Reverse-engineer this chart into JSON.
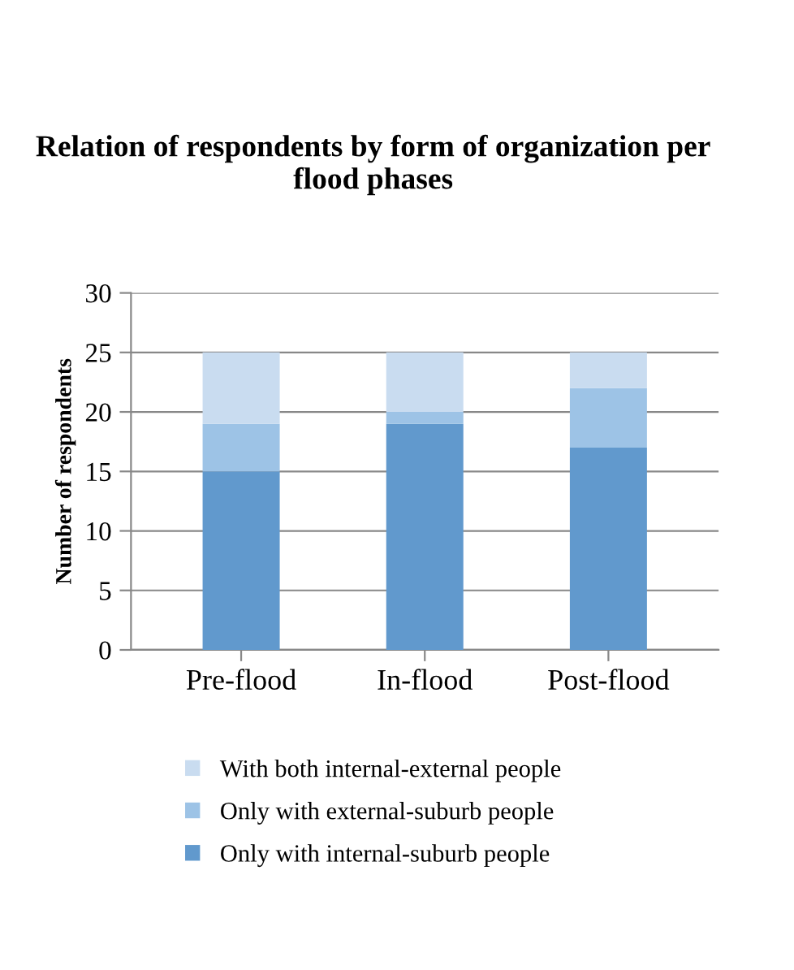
{
  "chart_data": {
    "type": "bar",
    "title": "Relation of respondents by form of organization per flood phases",
    "ylabel": "Number of respondents",
    "categories": [
      "Pre-flood",
      "In-flood",
      "Post-flood"
    ],
    "stacked": true,
    "series": [
      {
        "name": "Only with internal-suburb people",
        "color": "#6199cd",
        "values": [
          15,
          19,
          17
        ]
      },
      {
        "name": "Only with external-suburb people",
        "color": "#9dc3e6",
        "values": [
          4,
          1,
          5
        ]
      },
      {
        "name": "With both internal-external people",
        "color": "#c9dcf0",
        "values": [
          6,
          5,
          3
        ]
      }
    ],
    "ylim": [
      0,
      30
    ],
    "yticks": [
      0,
      5,
      10,
      15,
      20,
      25,
      30
    ],
    "grid": "y",
    "legend": "bottom"
  }
}
